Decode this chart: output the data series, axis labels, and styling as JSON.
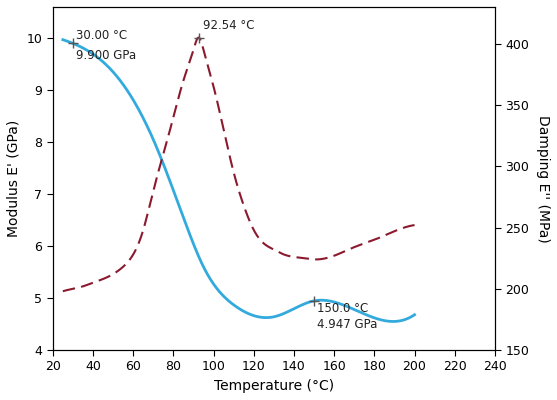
{
  "xlabel": "Temperature (°C)",
  "ylabel_left": "Modulus E' (GPa)",
  "ylabel_right": "Damping E'' (MPa)",
  "xlim": [
    20,
    240
  ],
  "ylim_left": [
    4,
    10.6
  ],
  "ylim_right": [
    150,
    430
  ],
  "xticks": [
    20,
    40,
    60,
    80,
    100,
    120,
    140,
    160,
    180,
    200,
    220,
    240
  ],
  "yticks_left": [
    4,
    5,
    6,
    7,
    8,
    9,
    10
  ],
  "yticks_right": [
    150,
    200,
    250,
    300,
    350,
    400
  ],
  "modulus_color": "#33AADD",
  "damping_color": "#8B1A2E",
  "annotation1": {
    "temp": 30.0,
    "val": 9.9,
    "label1": "30.00 °C",
    "label2": "9.900 GPa"
  },
  "annotation2": {
    "temp": 92.54,
    "val_mpa": 405,
    "label": "92.54 °C"
  },
  "annotation3": {
    "temp": 150.0,
    "val": 4.947,
    "label1": "150.0 °C",
    "label2": "4.947 GPa"
  },
  "modulus_x": [
    25,
    30,
    35,
    40,
    45,
    50,
    55,
    60,
    65,
    70,
    75,
    80,
    85,
    90,
    95,
    100,
    110,
    120,
    130,
    140,
    150,
    160,
    170,
    180,
    190,
    200
  ],
  "modulus_y": [
    9.97,
    9.9,
    9.82,
    9.7,
    9.55,
    9.35,
    9.1,
    8.8,
    8.45,
    8.05,
    7.6,
    7.1,
    6.6,
    6.1,
    5.65,
    5.28,
    4.87,
    4.72,
    4.65,
    4.62,
    4.947,
    4.85,
    4.8,
    4.76,
    4.73,
    4.7
  ],
  "damping_x": [
    25,
    30,
    35,
    40,
    45,
    50,
    55,
    60,
    65,
    70,
    75,
    80,
    85,
    90,
    92.54,
    95,
    100,
    105,
    110,
    115,
    120,
    125,
    130,
    135,
    140,
    145,
    150,
    160,
    170,
    180,
    190,
    200
  ],
  "damping_y": [
    198,
    200,
    202,
    205,
    208,
    212,
    218,
    228,
    248,
    280,
    310,
    340,
    370,
    395,
    405,
    395,
    365,
    330,
    295,
    268,
    248,
    237,
    232,
    228,
    226,
    225,
    224,
    227,
    234,
    240,
    247,
    252
  ]
}
